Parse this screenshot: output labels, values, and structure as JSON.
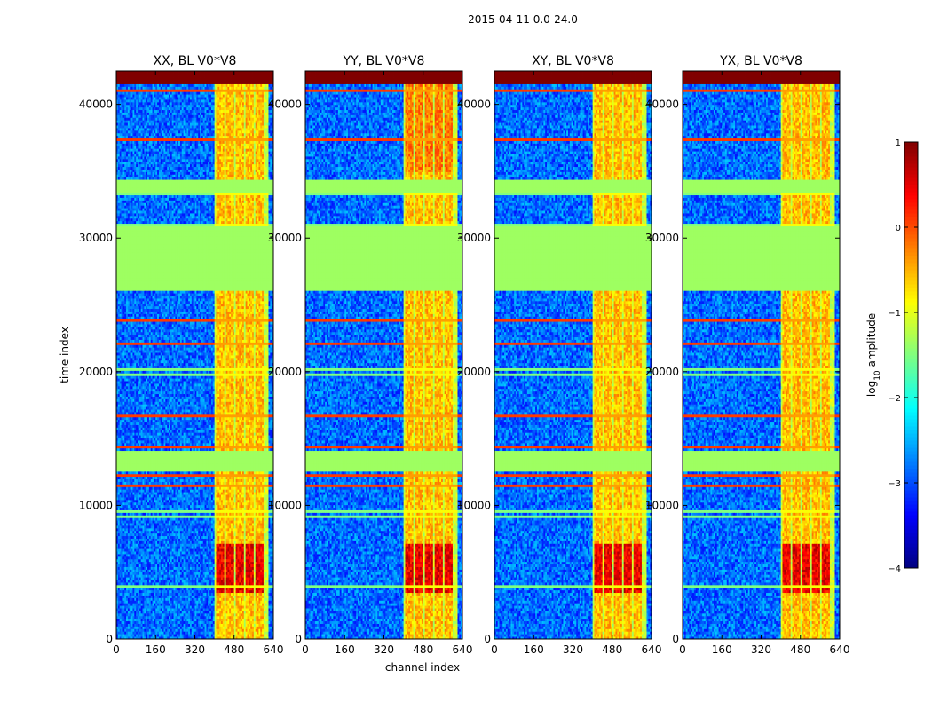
{
  "chart_data": {
    "type": "heatmap",
    "suptitle": "2015-04-11 0.0-24.0",
    "xlabel": "channel index",
    "ylabel": "time index",
    "xlim": [
      0,
      640
    ],
    "ylim": [
      0,
      42500
    ],
    "x_ticks": [
      0,
      160,
      320,
      480,
      640
    ],
    "y_ticks": [
      0,
      10000,
      20000,
      30000,
      40000
    ],
    "panels": [
      {
        "title": "XX, BL V0*V8",
        "polarization": "XX"
      },
      {
        "title": "YY, BL V0*V8",
        "polarization": "YY"
      },
      {
        "title": "XY, BL V0*V8",
        "polarization": "XY"
      },
      {
        "title": "YX, BL V0*V8",
        "polarization": "YX"
      }
    ],
    "colorbar": {
      "label_prefix": "log",
      "label_sub": "10",
      "label_suffix": " amplitude",
      "range": [
        -4,
        1
      ],
      "ticks": [
        1,
        0,
        -1,
        -2,
        -3,
        -4
      ],
      "colormap": "jet"
    },
    "structure": {
      "signal_band_channels": [
        400,
        620
      ],
      "saturated_time_range": [
        41500,
        42500
      ],
      "flagged_time_blocks": [
        [
          12600,
          14100
        ],
        [
          33500,
          34300
        ],
        [
          26000,
          31000
        ]
      ],
      "bright_time_range": [
        3500,
        7200
      ],
      "bright_block_channels": [
        [
          410,
          440
        ],
        [
          450,
          480
        ],
        [
          490,
          520
        ],
        [
          530,
          560
        ],
        [
          570,
          600
        ]
      ]
    }
  }
}
